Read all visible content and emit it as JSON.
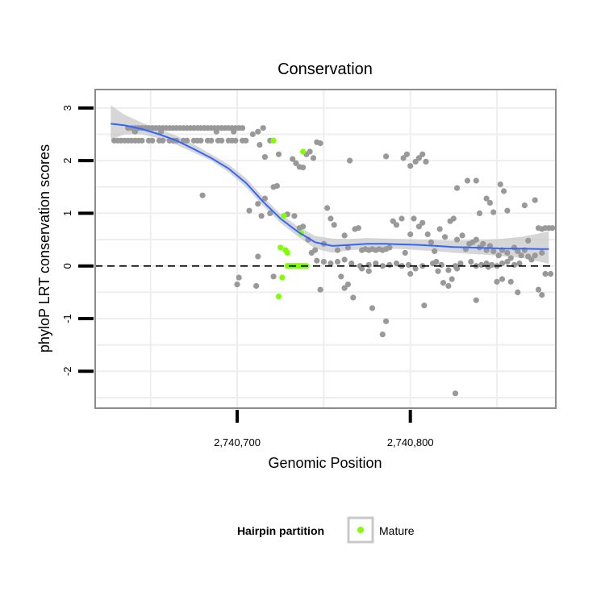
{
  "chart_data": {
    "type": "scatter",
    "title": "Conservation",
    "xlabel": "Genomic Position",
    "ylabel": "phyloP LRT conservation scores",
    "xlim": [
      2740618,
      2740884
    ],
    "ylim": [
      -2.7,
      3.35
    ],
    "x_ticks": [
      2740700,
      2740800
    ],
    "x_tick_labels": [
      "2,740,700",
      "2,740,800"
    ],
    "y_ticks": [
      -2,
      -1,
      0,
      1,
      2,
      3
    ],
    "y_tick_labels": [
      "-2",
      "-1",
      "0",
      "1",
      "2",
      "3"
    ],
    "grid": true,
    "reference_line": {
      "y": 0,
      "style": "dashed"
    },
    "legend": {
      "title": "Hairpin partition",
      "placement": "bottom",
      "entries": [
        {
          "label": "Mature",
          "color": "#7fff00"
        }
      ]
    },
    "colors": {
      "points": "#999999",
      "mature": "#7fff00",
      "smooth": "#3366ff",
      "ribbon": "#c8c8c8",
      "panel_border": "#8c8c8c",
      "grid": "#eeeeee"
    },
    "series": [
      {
        "role": "background",
        "points": [
          [
            2740629,
            2.38
          ],
          [
            2740631,
            2.38
          ],
          [
            2740633,
            2.38
          ],
          [
            2740635,
            2.38
          ],
          [
            2740637,
            2.38
          ],
          [
            2740639,
            2.38
          ],
          [
            2740641,
            2.38
          ],
          [
            2740643,
            2.38
          ],
          [
            2740645,
            2.38
          ],
          [
            2740649,
            2.38
          ],
          [
            2740651,
            2.38
          ],
          [
            2740655,
            2.38
          ],
          [
            2740657,
            2.38
          ],
          [
            2740661,
            2.38
          ],
          [
            2740663,
            2.38
          ],
          [
            2740665,
            2.38
          ],
          [
            2740669,
            2.38
          ],
          [
            2740671,
            2.38
          ],
          [
            2740675,
            2.38
          ],
          [
            2740677,
            2.38
          ],
          [
            2740679,
            2.38
          ],
          [
            2740683,
            2.38
          ],
          [
            2740685,
            2.38
          ],
          [
            2740689,
            2.38
          ],
          [
            2740691,
            2.38
          ],
          [
            2740695,
            2.38
          ],
          [
            2740697,
            2.38
          ],
          [
            2740699,
            2.38
          ],
          [
            2740703,
            2.38
          ],
          [
            2740705,
            2.38
          ],
          [
            2740637,
            2.62
          ],
          [
            2740639,
            2.62
          ],
          [
            2740641,
            2.62
          ],
          [
            2740643,
            2.62
          ],
          [
            2740645,
            2.62
          ],
          [
            2740647,
            2.62
          ],
          [
            2740649,
            2.62
          ],
          [
            2740651,
            2.62
          ],
          [
            2740653,
            2.62
          ],
          [
            2740655,
            2.62
          ],
          [
            2740657,
            2.62
          ],
          [
            2740659,
            2.62
          ],
          [
            2740661,
            2.62
          ],
          [
            2740663,
            2.62
          ],
          [
            2740665,
            2.62
          ],
          [
            2740667,
            2.62
          ],
          [
            2740669,
            2.62
          ],
          [
            2740671,
            2.62
          ],
          [
            2740673,
            2.62
          ],
          [
            2740675,
            2.62
          ],
          [
            2740677,
            2.62
          ],
          [
            2740679,
            2.62
          ],
          [
            2740681,
            2.62
          ],
          [
            2740683,
            2.62
          ],
          [
            2740685,
            2.62
          ],
          [
            2740687,
            2.62
          ],
          [
            2740689,
            2.62
          ],
          [
            2740691,
            2.62
          ],
          [
            2740693,
            2.62
          ],
          [
            2740695,
            2.62
          ],
          [
            2740697,
            2.62
          ],
          [
            2740699,
            2.62
          ],
          [
            2740701,
            2.62
          ],
          [
            2740703,
            2.62
          ],
          [
            2740715,
            2.62
          ],
          [
            2740641,
            2.55
          ],
          [
            2740656,
            2.55
          ],
          [
            2740688,
            2.55
          ],
          [
            2740698,
            2.55
          ],
          [
            2740712,
            2.55
          ],
          [
            2740709,
            2.5
          ],
          [
            2740713,
            2.3
          ],
          [
            2740719,
            2.38
          ],
          [
            2740716,
            2.07
          ],
          [
            2740724,
            2.12
          ],
          [
            2740732,
            2.03
          ],
          [
            2740734,
            1.95
          ],
          [
            2740736,
            1.88
          ],
          [
            2740738,
            1.87
          ],
          [
            2740740,
            2.12
          ],
          [
            2740742,
            2.17
          ],
          [
            2740744,
            2.05
          ],
          [
            2740746,
            2.35
          ],
          [
            2740748,
            2.33
          ],
          [
            2740680,
            1.34
          ],
          [
            2740707,
            1.05
          ],
          [
            2740712,
            1.18
          ],
          [
            2740714,
            0.95
          ],
          [
            2740716,
            1.28
          ],
          [
            2740719,
            1.0
          ],
          [
            2740721,
            1.5
          ],
          [
            2740723,
            1.52
          ],
          [
            2740729,
            0.98
          ],
          [
            2740733,
            0.95
          ],
          [
            2740736,
            0.72
          ],
          [
            2740738,
            0.75
          ],
          [
            2740741,
            0.5
          ],
          [
            2740743,
            0.25
          ],
          [
            2740745,
            0.3
          ],
          [
            2740750,
            0.42
          ],
          [
            2740752,
            1.1
          ],
          [
            2740754,
            0.9
          ],
          [
            2740756,
            0.78
          ],
          [
            2740758,
            0.3
          ],
          [
            2740762,
            0.58
          ],
          [
            2740764,
            0.35
          ],
          [
            2740768,
            0.7
          ],
          [
            2740770,
            0.72
          ],
          [
            2740772,
            0.3
          ],
          [
            2740774,
            0.32
          ],
          [
            2740776,
            0.3
          ],
          [
            2740778,
            0.32
          ],
          [
            2740780,
            0.3
          ],
          [
            2740782,
            0.32
          ],
          [
            2740784,
            0.3
          ],
          [
            2740786,
            0.32
          ],
          [
            2740788,
            0.35
          ],
          [
            2740790,
            0.85
          ],
          [
            2740792,
            0.78
          ],
          [
            2740795,
            0.9
          ],
          [
            2740797,
            0.25
          ],
          [
            2740800,
            0.6
          ],
          [
            2740802,
            0.9
          ],
          [
            2740805,
            0.75
          ],
          [
            2740807,
            0.82
          ],
          [
            2740810,
            0.6
          ],
          [
            2740812,
            0.45
          ],
          [
            2740814,
            0.28
          ],
          [
            2740817,
            0.7
          ],
          [
            2740820,
            0.55
          ],
          [
            2740823,
            0.85
          ],
          [
            2740825,
            0.9
          ],
          [
            2740827,
            0.5
          ],
          [
            2740830,
            0.58
          ],
          [
            2740832,
            0.32
          ],
          [
            2740834,
            0.42
          ],
          [
            2740836,
            0.45
          ],
          [
            2740838,
            0.5
          ],
          [
            2740840,
            0.35
          ],
          [
            2740842,
            0.42
          ],
          [
            2740844,
            0.3
          ],
          [
            2740846,
            0.38
          ],
          [
            2740848,
            0.28
          ],
          [
            2740851,
            0.2
          ],
          [
            2740853,
            0.3
          ],
          [
            2740856,
            0.25
          ],
          [
            2740858,
            0.15
          ],
          [
            2740860,
            0.35
          ],
          [
            2740862,
            0.28
          ],
          [
            2740864,
            0.2
          ],
          [
            2740866,
            0.3
          ],
          [
            2740868,
            0.18
          ],
          [
            2740870,
            0.12
          ],
          [
            2740872,
            0.2
          ],
          [
            2740874,
            0.72
          ],
          [
            2740876,
            0.7
          ],
          [
            2740878,
            0.72
          ],
          [
            2740880,
            0.72
          ],
          [
            2740882,
            0.72
          ],
          [
            2740712,
            0.18
          ],
          [
            2740786,
            2.08
          ],
          [
            2740796,
            2.05
          ],
          [
            2740798,
            2.12
          ],
          [
            2740800,
            1.9
          ],
          [
            2740803,
            1.98
          ],
          [
            2740805,
            2.05
          ],
          [
            2740807,
            2.12
          ],
          [
            2740809,
            1.98
          ],
          [
            2740827,
            1.48
          ],
          [
            2740833,
            1.62
          ],
          [
            2740838,
            1.62
          ],
          [
            2740840,
            1.0
          ],
          [
            2740844,
            1.28
          ],
          [
            2740846,
            1.2
          ],
          [
            2740848,
            1.02
          ],
          [
            2740852,
            1.55
          ],
          [
            2740854,
            1.42
          ],
          [
            2740856,
            1.05
          ],
          [
            2740866,
            1.15
          ],
          [
            2740868,
            0.48
          ],
          [
            2740872,
            1.25
          ],
          [
            2740876,
            0.25
          ],
          [
            2740765,
            2.0
          ],
          [
            2740813,
            0.05
          ],
          [
            2740815,
            0.08
          ],
          [
            2740818,
            0.02
          ],
          [
            2740822,
            -0.08
          ],
          [
            2740826,
            0.0
          ],
          [
            2740829,
            0.05
          ],
          [
            2740835,
            0.08
          ],
          [
            2740838,
            0.0
          ],
          [
            2740841,
            0.02
          ],
          [
            2740844,
            0.05
          ],
          [
            2740847,
            0.02
          ],
          [
            2740850,
            0.0
          ],
          [
            2740853,
            0.05
          ],
          [
            2740856,
            0.08
          ],
          [
            2740860,
            0.02
          ],
          [
            2740863,
            0.05
          ],
          [
            2740766,
            0.05
          ],
          [
            2740771,
            0.0
          ],
          [
            2740776,
            0.02
          ],
          [
            2740780,
            0.05
          ],
          [
            2740784,
            0.0
          ],
          [
            2740788,
            0.02
          ],
          [
            2740792,
            0.05
          ],
          [
            2740795,
            0.0
          ],
          [
            2740799,
            0.02
          ],
          [
            2740803,
            -0.05
          ],
          [
            2740807,
            0.0
          ],
          [
            2740746,
            0.1
          ],
          [
            2740750,
            0.08
          ],
          [
            2740754,
            0.05
          ],
          [
            2740758,
            0.08
          ],
          [
            2740762,
            0.12
          ],
          [
            2740701,
            -0.22
          ],
          [
            2740700,
            -0.35
          ],
          [
            2740711,
            -0.38
          ],
          [
            2740721,
            -0.2
          ],
          [
            2740748,
            -0.45
          ],
          [
            2740760,
            -0.2
          ],
          [
            2740762,
            -0.42
          ],
          [
            2740764,
            -0.35
          ],
          [
            2740767,
            -0.6
          ],
          [
            2740772,
            -0.05
          ],
          [
            2740776,
            -0.1
          ],
          [
            2740778,
            -0.8
          ],
          [
            2740786,
            -1.05
          ],
          [
            2740784,
            -1.3
          ],
          [
            2740800,
            -0.15
          ],
          [
            2740808,
            -0.75
          ],
          [
            2740816,
            -0.1
          ],
          [
            2740819,
            -0.32
          ],
          [
            2740822,
            -0.38
          ],
          [
            2740824,
            -0.25
          ],
          [
            2740827,
            -0.05
          ],
          [
            2740838,
            -0.65
          ],
          [
            2740845,
            -0.02
          ],
          [
            2740850,
            -0.3
          ],
          [
            2740853,
            -0.25
          ],
          [
            2740858,
            -0.3
          ],
          [
            2740862,
            -0.5
          ],
          [
            2740874,
            -0.45
          ],
          [
            2740876,
            -0.55
          ],
          [
            2740878,
            -0.15
          ],
          [
            2740881,
            -0.15
          ],
          [
            2740826,
            -2.42
          ]
        ]
      },
      {
        "name": "Mature",
        "role": "highlight",
        "points": [
          [
            2740721,
            2.38
          ],
          [
            2740738,
            2.17
          ],
          [
            2740727,
            0.95
          ],
          [
            2740737,
            0.62
          ],
          [
            2740725,
            0.35
          ],
          [
            2740728,
            0.3
          ],
          [
            2740729,
            0.25
          ],
          [
            2740726,
            -0.22
          ],
          [
            2740724,
            -0.58
          ],
          [
            2740729,
            0.0
          ],
          [
            2740730,
            0.0
          ],
          [
            2740731,
            0.0
          ],
          [
            2740732,
            0.0
          ],
          [
            2740733,
            0.0
          ],
          [
            2740734,
            0.0
          ],
          [
            2740735,
            0.0
          ],
          [
            2740736,
            0.0
          ],
          [
            2740737,
            0.0
          ],
          [
            2740738,
            0.0
          ],
          [
            2740739,
            0.0
          ],
          [
            2740740,
            0.0
          ]
        ]
      }
    ],
    "smooth": {
      "x": [
        2740627,
        2740635,
        2740645,
        2740655,
        2740665,
        2740675,
        2740685,
        2740695,
        2740705,
        2740715,
        2740725,
        2740735,
        2740745,
        2740755,
        2740765,
        2740775,
        2740785,
        2740795,
        2740805,
        2740815,
        2740825,
        2740835,
        2740845,
        2740855,
        2740865,
        2740875,
        2740880
      ],
      "y": [
        2.7,
        2.67,
        2.6,
        2.5,
        2.38,
        2.22,
        2.05,
        1.85,
        1.58,
        1.22,
        0.9,
        0.65,
        0.45,
        0.38,
        0.4,
        0.42,
        0.42,
        0.41,
        0.4,
        0.38,
        0.36,
        0.35,
        0.34,
        0.33,
        0.33,
        0.32,
        0.32
      ],
      "lower": [
        2.4,
        2.5,
        2.5,
        2.42,
        2.3,
        2.15,
        2.0,
        1.78,
        1.5,
        1.14,
        0.82,
        0.56,
        0.33,
        0.25,
        0.3,
        0.32,
        0.33,
        0.32,
        0.3,
        0.28,
        0.25,
        0.23,
        0.21,
        0.18,
        0.15,
        0.08,
        0.04
      ],
      "upper": [
        3.05,
        2.87,
        2.72,
        2.6,
        2.47,
        2.31,
        2.12,
        1.93,
        1.67,
        1.31,
        0.99,
        0.75,
        0.57,
        0.52,
        0.51,
        0.53,
        0.52,
        0.51,
        0.5,
        0.49,
        0.48,
        0.49,
        0.5,
        0.52,
        0.56,
        0.62,
        0.66
      ]
    }
  }
}
